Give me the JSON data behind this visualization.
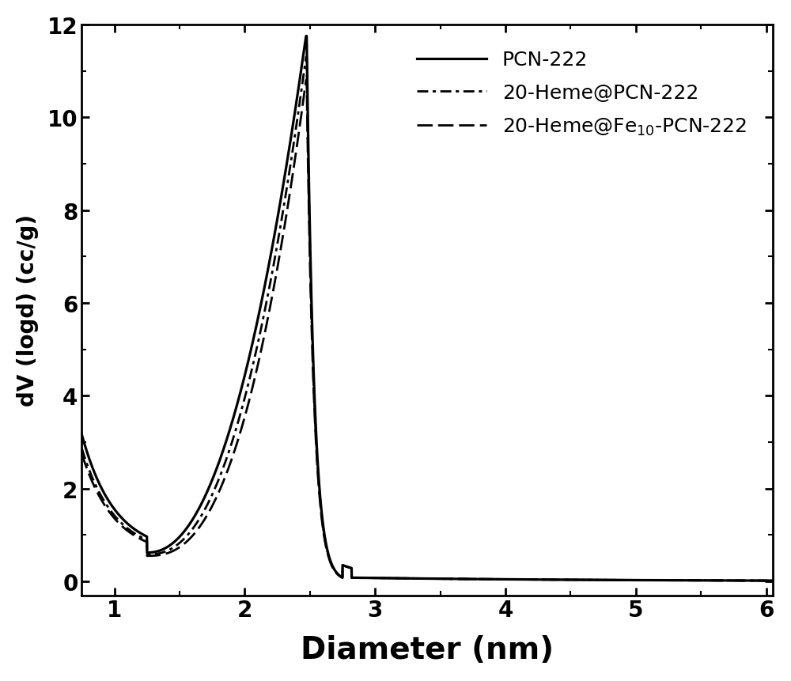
{
  "xlabel": "Diameter (nm)",
  "ylabel": "dV (logd) (cc/g)",
  "xlim": [
    0.75,
    6.05
  ],
  "ylim": [
    -0.3,
    12.0
  ],
  "yticks": [
    0,
    2,
    4,
    6,
    8,
    10,
    12
  ],
  "xticks": [
    1,
    2,
    3,
    4,
    5,
    6
  ],
  "legend": [
    {
      "label": "PCN-222"
    },
    {
      "label": "20-Heme@PCN-222"
    },
    {
      "label": "20-Heme@Fe$_{10}$-PCN-222"
    }
  ],
  "color": "#000000",
  "background": "#ffffff",
  "figsize": [
    10.0,
    8.62
  ],
  "dpi": 100,
  "xlabel_fontsize": 28,
  "ylabel_fontsize": 20,
  "tick_labelsize": 20,
  "legend_fontsize": 18
}
